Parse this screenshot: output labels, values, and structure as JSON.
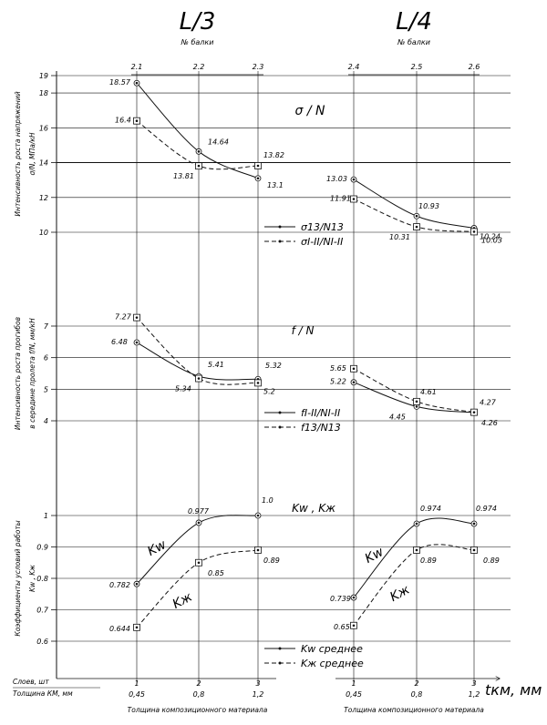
{
  "chart_data": {
    "type": "line",
    "panels": [
      {
        "title": "L/3",
        "top_axis_label": "№ балки",
        "beam_numbers": [
          "2.1",
          "2.2",
          "2.3"
        ],
        "layers_ticks": [
          "1",
          "2",
          "3"
        ],
        "thickness_ticks": [
          "0,45",
          "0,8",
          "1,2"
        ],
        "xlabel": "Толщина композиционного материала",
        "sigma": {
          "series": [
            {
              "name": "σ13/N13",
              "values": [
                18.57,
                14.64,
                13.1
              ],
              "labels": [
                "18.57",
                "14.64",
                "13.1"
              ],
              "style": "solid"
            },
            {
              "name": "σI-II/NI-II",
              "values": [
                16.4,
                13.81,
                13.82
              ],
              "labels": [
                "16.4",
                "13.81",
                "13.82"
              ],
              "style": "dashed"
            }
          ]
        },
        "deflection": {
          "series": [
            {
              "name": "fI-II/NI-II",
              "values": [
                6.48,
                5.41,
                5.32
              ],
              "labels": [
                "6.48",
                "5.41",
                "5.32"
              ],
              "style": "solid"
            },
            {
              "name": "f13/N13",
              "values": [
                7.27,
                5.34,
                5.2
              ],
              "labels": [
                "7.27",
                "5.34",
                "5.2"
              ],
              "style": "dashed"
            }
          ]
        },
        "coefficients": {
          "series": [
            {
              "name": "Kw среднее",
              "values": [
                0.782,
                0.977,
                1.0
              ],
              "labels": [
                "0.782",
                "0.977",
                "1.0"
              ],
              "style": "solid",
              "curve_label": "Kw"
            },
            {
              "name": "Kж среднее",
              "values": [
                0.644,
                0.85,
                0.89
              ],
              "labels": [
                "0.644",
                "0.85",
                "0.89"
              ],
              "style": "dashed",
              "curve_label": "Kж"
            }
          ]
        }
      },
      {
        "title": "L/4",
        "top_axis_label": "№ балки",
        "beam_numbers": [
          "2.4",
          "2.5",
          "2.6"
        ],
        "layers_ticks": [
          "1",
          "2",
          "3"
        ],
        "thickness_ticks": [
          "0,45",
          "0,8",
          "1,2"
        ],
        "xlabel": "Толщина композиционного материала",
        "sigma": {
          "series": [
            {
              "name": "σ13/N13",
              "values": [
                13.03,
                10.93,
                10.24
              ],
              "labels": [
                "13.03",
                "10.93",
                "10.24"
              ],
              "style": "solid"
            },
            {
              "name": "σI-II/NI-II",
              "values": [
                11.91,
                10.31,
                10.03
              ],
              "labels": [
                "11.91",
                "10.31",
                "10.03"
              ],
              "style": "dashed"
            }
          ]
        },
        "deflection": {
          "series": [
            {
              "name": "fI-II/NI-II",
              "values": [
                5.22,
                4.45,
                4.26
              ],
              "labels": [
                "5.22",
                "4.45",
                "4.26"
              ],
              "style": "solid"
            },
            {
              "name": "f13/N13",
              "values": [
                5.65,
                4.61,
                4.27
              ],
              "labels": [
                "5.65",
                "4.61",
                "4.27"
              ],
              "style": "dashed"
            }
          ]
        },
        "coefficients": {
          "series": [
            {
              "name": "Kw среднее",
              "values": [
                0.739,
                0.974,
                0.974
              ],
              "labels": [
                "0.739",
                "0.974",
                "0.974"
              ],
              "style": "solid",
              "curve_label": "Kw"
            },
            {
              "name": "Kж среднее",
              "values": [
                0.65,
                0.89,
                0.89
              ],
              "labels": [
                "0.65",
                "0.89",
                "0.89"
              ],
              "style": "dashed",
              "curve_label": "Kж"
            }
          ]
        }
      }
    ],
    "sigma_axis": {
      "ylabel_line1": "Интенсивность роста напряжений",
      "ylabel_line2": "σ/N,  МПа/кН",
      "ticks": [
        10,
        12,
        14,
        16,
        18,
        19
      ],
      "ylim": [
        10,
        19
      ],
      "plot_label": "σ / N"
    },
    "deflection_axis": {
      "ylabel_line1": "Интенсивность роста прогибов",
      "ylabel_line2": "в середине пролета f/N,  мм/кН",
      "ticks": [
        4,
        5,
        6,
        7
      ],
      "ylim": [
        4,
        7
      ],
      "plot_label": "f / N"
    },
    "coefficient_axis": {
      "ylabel_line1": "Коэффициенты условий работы",
      "ylabel_line2": "Kw  ,  Kж",
      "ticks": [
        0.6,
        0.7,
        0.8,
        0.9,
        1
      ],
      "ylim": [
        0.6,
        1.0
      ],
      "plot_label": "Kw  ,  Kж"
    },
    "bottom_axis": {
      "layers_label": "Слоев,  шт",
      "thickness_label": "Толщина КМ, мм",
      "unit_label": "tкм, мм"
    },
    "grid": true
  }
}
